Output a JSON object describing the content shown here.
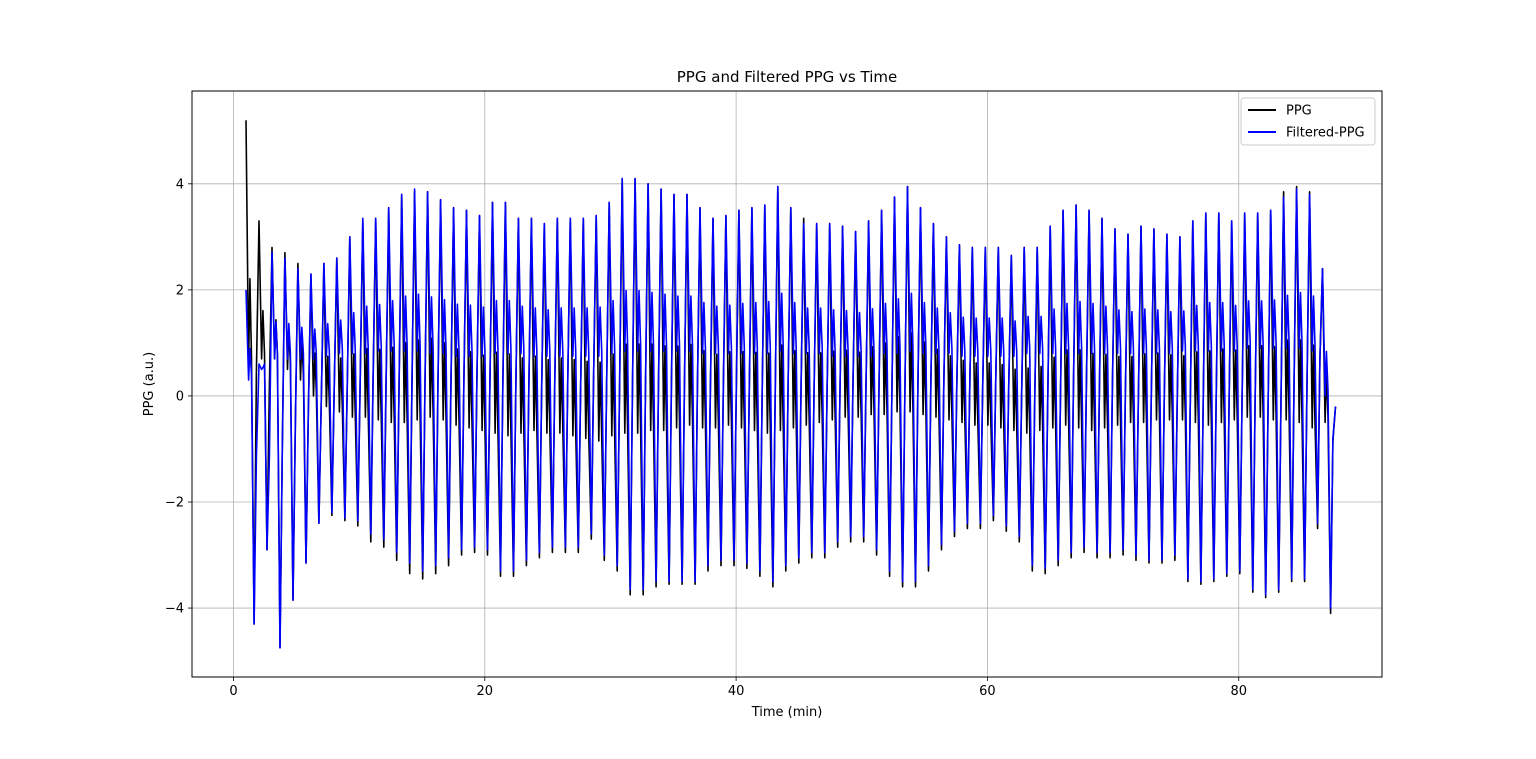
{
  "chart_data": {
    "type": "line",
    "title": "PPG and Filtered PPG vs Time",
    "xlabel": "Time (min)",
    "ylabel": "PPG (a.u.)",
    "xlim": [
      -3.3,
      91.4
    ],
    "ylim": [
      -5.3,
      5.75
    ],
    "xticks": [
      0,
      20,
      40,
      60,
      80
    ],
    "yticks": [
      -4,
      -2,
      0,
      2,
      4
    ],
    "xtick_labels": [
      "0",
      "20",
      "40",
      "60",
      "80"
    ],
    "ytick_labels": [
      "−4",
      "−2",
      "0",
      "2",
      "4"
    ],
    "grid": true,
    "legend_position": "top-right",
    "series": [
      {
        "name": "PPG",
        "color": "#000000",
        "t_start": 1.0,
        "t_end": 87.7,
        "cycles": 84,
        "peaks": [
          5.2,
          3.3,
          2.8,
          2.7,
          2.5,
          2.3,
          2.5,
          2.6,
          3.0,
          3.3,
          3.35,
          3.55,
          3.8,
          3.85,
          3.85,
          3.7,
          3.55,
          3.5,
          3.4,
          3.65,
          3.65,
          3.35,
          3.35,
          3.25,
          3.35,
          3.35,
          3.35,
          3.4,
          3.65,
          4.1,
          4.1,
          4.0,
          3.9,
          3.8,
          3.8,
          3.55,
          3.35,
          3.4,
          3.5,
          3.55,
          3.6,
          3.95,
          3.55,
          3.35,
          3.25,
          3.25,
          3.2,
          3.1,
          3.3,
          3.5,
          3.75,
          3.95,
          3.55,
          3.25,
          3.0,
          2.85,
          2.8,
          2.8,
          2.8,
          2.65,
          2.8,
          2.8,
          3.2,
          3.5,
          3.6,
          3.5,
          3.35,
          3.15,
          3.05,
          3.2,
          3.15,
          3.05,
          3.0,
          3.3,
          3.45,
          3.45,
          3.3,
          3.45,
          3.45,
          3.5,
          3.85,
          3.95,
          3.85,
          2.4
        ],
        "troughs": [
          -4.3,
          -2.9,
          -4.75,
          -3.85,
          -3.15,
          -2.4,
          -2.25,
          -2.35,
          -2.45,
          -2.75,
          -2.85,
          -3.1,
          -3.35,
          -3.45,
          -3.35,
          -3.2,
          -3.0,
          -2.95,
          -3.0,
          -3.4,
          -3.4,
          -3.2,
          -3.05,
          -2.95,
          -2.95,
          -2.95,
          -2.7,
          -3.1,
          -3.3,
          -3.75,
          -3.75,
          -3.6,
          -3.55,
          -3.55,
          -3.55,
          -3.3,
          -3.2,
          -3.2,
          -3.25,
          -3.4,
          -3.6,
          -3.3,
          -3.15,
          -3.05,
          -3.05,
          -2.85,
          -2.75,
          -2.75,
          -3.0,
          -3.4,
          -3.6,
          -3.6,
          -3.3,
          -2.9,
          -2.65,
          -2.5,
          -2.5,
          -2.35,
          -2.55,
          -2.75,
          -3.3,
          -3.35,
          -3.2,
          -3.05,
          -2.95,
          -3.05,
          -3.05,
          -3.0,
          -3.1,
          -3.15,
          -3.15,
          -3.1,
          -3.5,
          -3.55,
          -3.5,
          -3.4,
          -3.35,
          -3.7,
          -3.8,
          -3.7,
          -3.5,
          -3.5,
          -2.5,
          -4.1
        ],
        "notch": [
          0.6,
          0.7,
          0.7,
          0.5,
          0.3,
          0.0,
          -0.2,
          -0.3,
          -0.4,
          -0.4,
          -0.45,
          -0.5,
          -0.5,
          -0.45,
          -0.4,
          -0.45,
          -0.55,
          -0.6,
          -0.65,
          -0.7,
          -0.75,
          -0.7,
          -0.65,
          -0.7,
          -0.7,
          -0.75,
          -0.8,
          -0.85,
          -0.75,
          -0.7,
          -0.7,
          -0.65,
          -0.65,
          -0.6,
          -0.55,
          -0.6,
          -0.6,
          -0.55,
          -0.6,
          -0.65,
          -0.7,
          -0.65,
          -0.6,
          -0.55,
          -0.5,
          -0.45,
          -0.4,
          -0.4,
          -0.35,
          -0.35,
          -0.3,
          -0.3,
          -0.35,
          -0.4,
          -0.45,
          -0.5,
          -0.55,
          -0.55,
          -0.6,
          -0.65,
          -0.7,
          -0.65,
          -0.6,
          -0.55,
          -0.6,
          -0.65,
          -0.6,
          -0.55,
          -0.5,
          -0.5,
          -0.45,
          -0.45,
          -0.45,
          -0.5,
          -0.55,
          -0.5,
          -0.45,
          -0.4,
          -0.4,
          -0.45,
          -0.45,
          -0.5,
          -0.6,
          -0.5
        ]
      },
      {
        "name": "Filtered-PPG",
        "color": "#0000ff",
        "t_start": 1.0,
        "t_end": 87.7,
        "cycles": 84,
        "peaks": [
          2.0,
          0.6,
          2.7,
          2.6,
          2.4,
          2.3,
          2.5,
          2.6,
          3.0,
          3.35,
          3.35,
          3.55,
          3.8,
          3.9,
          3.85,
          3.7,
          3.55,
          3.5,
          3.4,
          3.65,
          3.65,
          3.35,
          3.35,
          3.25,
          3.35,
          3.35,
          3.35,
          3.4,
          3.65,
          4.1,
          4.1,
          4.0,
          3.9,
          3.8,
          3.8,
          3.55,
          3.35,
          3.4,
          3.5,
          3.55,
          3.6,
          3.95,
          3.55,
          3.25,
          3.25,
          3.25,
          3.2,
          3.1,
          3.3,
          3.5,
          3.75,
          3.95,
          3.55,
          3.25,
          3.0,
          2.85,
          2.8,
          2.8,
          2.8,
          2.65,
          2.8,
          2.8,
          3.2,
          3.5,
          3.6,
          3.5,
          3.35,
          3.15,
          3.05,
          3.2,
          3.15,
          3.05,
          3.0,
          3.3,
          3.45,
          3.45,
          3.3,
          3.45,
          3.45,
          3.5,
          3.75,
          3.9,
          3.8,
          2.4
        ],
        "troughs": [
          -4.3,
          -2.9,
          -4.75,
          -3.85,
          -3.15,
          -2.4,
          -2.2,
          -2.3,
          -2.35,
          -2.6,
          -2.7,
          -2.95,
          -3.15,
          -3.3,
          -3.2,
          -3.05,
          -2.9,
          -2.85,
          -2.9,
          -3.3,
          -3.3,
          -3.1,
          -2.95,
          -2.85,
          -2.85,
          -2.85,
          -2.6,
          -3.0,
          -3.2,
          -3.65,
          -3.65,
          -3.5,
          -3.5,
          -3.5,
          -3.5,
          -3.2,
          -3.1,
          -3.1,
          -3.15,
          -3.3,
          -3.5,
          -3.2,
          -3.05,
          -2.95,
          -2.95,
          -2.75,
          -2.65,
          -2.65,
          -2.9,
          -3.3,
          -3.5,
          -3.5,
          -3.2,
          -2.8,
          -2.55,
          -2.4,
          -2.4,
          -2.25,
          -2.45,
          -2.65,
          -3.2,
          -3.25,
          -3.1,
          -2.95,
          -2.85,
          -2.95,
          -2.95,
          -2.9,
          -3.0,
          -3.1,
          -3.1,
          -3.0,
          -3.45,
          -3.5,
          -3.45,
          -3.35,
          -3.3,
          -3.65,
          -3.75,
          -3.65,
          -3.45,
          -3.45,
          -2.4,
          -4.0
        ],
        "notch": [
          0.3,
          0.5,
          0.7,
          0.7,
          0.7,
          0.7,
          0.75,
          0.8,
          0.8,
          0.8,
          0.85,
          0.85,
          0.85,
          0.85,
          0.8,
          0.8,
          0.75,
          0.75,
          0.75,
          0.8,
          0.8,
          0.8,
          0.75,
          0.75,
          0.75,
          0.75,
          0.75,
          0.75,
          0.8,
          0.85,
          0.85,
          0.85,
          0.85,
          0.85,
          0.85,
          0.8,
          0.8,
          0.8,
          0.8,
          0.8,
          0.8,
          0.85,
          0.8,
          0.8,
          0.8,
          0.75,
          0.75,
          0.75,
          0.75,
          0.8,
          0.8,
          0.85,
          0.8,
          0.8,
          0.8,
          0.75,
          0.75,
          0.75,
          0.75,
          0.75,
          0.8,
          0.8,
          0.8,
          0.8,
          0.8,
          0.8,
          0.8,
          0.8,
          0.8,
          0.8,
          0.8,
          0.8,
          0.85,
          0.85,
          0.85,
          0.85,
          0.85,
          0.9,
          0.9,
          0.9,
          0.9,
          0.9,
          0.85,
          0.0
        ]
      }
    ]
  }
}
